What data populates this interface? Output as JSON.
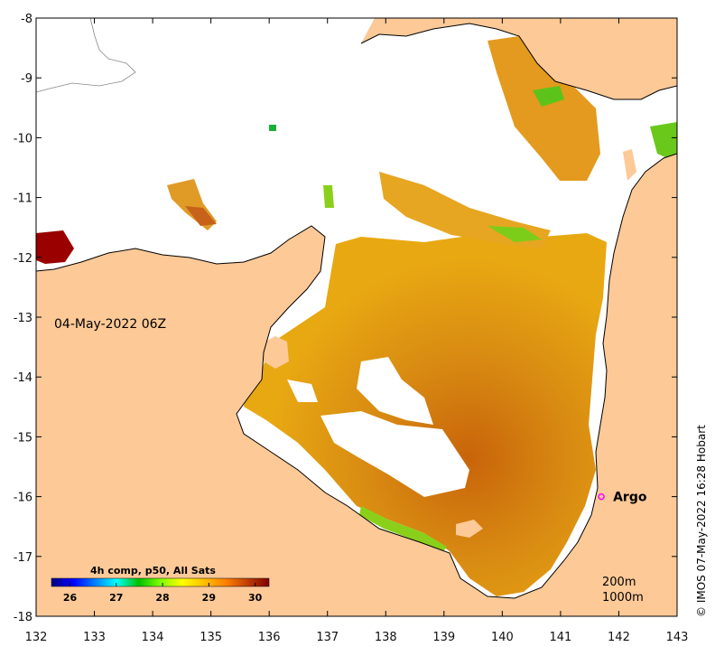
{
  "map": {
    "timestamp": "04-May-2022 06Z",
    "credit": "© IMOS 07-May-2022 16:28 Hobart",
    "depth_labels": [
      "200m",
      "1000m"
    ],
    "land_color": "#fcc997",
    "ocean_nodata_color": "#ffffff"
  },
  "axes": {
    "x_ticks": [
      "132",
      "133",
      "134",
      "135",
      "136",
      "137",
      "138",
      "139",
      "140",
      "141",
      "142",
      "143"
    ],
    "y_ticks": [
      "-8",
      "-9",
      "-10",
      "-11",
      "-12",
      "-13",
      "-14",
      "-15",
      "-16",
      "-17",
      "-18"
    ]
  },
  "colorbar": {
    "title": "4h comp, p50, All Sats",
    "ticks": [
      "26",
      "27",
      "28",
      "29",
      "30"
    ],
    "colors": [
      "#000080",
      "#0000ff",
      "#0080ff",
      "#00ffff",
      "#00c000",
      "#80ff00",
      "#ffff00",
      "#ffc000",
      "#ff8000",
      "#c04000",
      "#800000"
    ]
  },
  "marker": {
    "label": "Argo",
    "color": "#ff00ff",
    "lon": 141.7,
    "lat": -16.0
  },
  "chart_data": {
    "type": "heatmap",
    "xlim": [
      132,
      143
    ],
    "ylim": [
      -18,
      -8
    ],
    "value_range": [
      25.6,
      30.3
    ]
  }
}
